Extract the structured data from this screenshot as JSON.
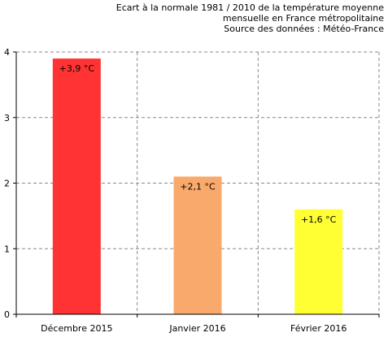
{
  "chart_data": {
    "type": "bar",
    "title_lines": [
      "Ecart à la normale 1981 / 2010 de la température moyenne",
      "mensuelle en France métropolitaine",
      "Source des données : Météo-France"
    ],
    "categories": [
      "Décembre 2015",
      "Janvier 2016",
      "Février 2016"
    ],
    "values": [
      3.9,
      2.1,
      1.6
    ],
    "value_labels": [
      "+3,9 °C",
      "+2,1 °C",
      "+1,6 °C"
    ],
    "colors": [
      "#ff3333",
      "#f9a96b",
      "#ffff33"
    ],
    "ylim": [
      0,
      4
    ],
    "yticks": [
      "0",
      "1",
      "2",
      "3",
      "4"
    ],
    "grid": true,
    "xlabel": "",
    "ylabel": ""
  }
}
